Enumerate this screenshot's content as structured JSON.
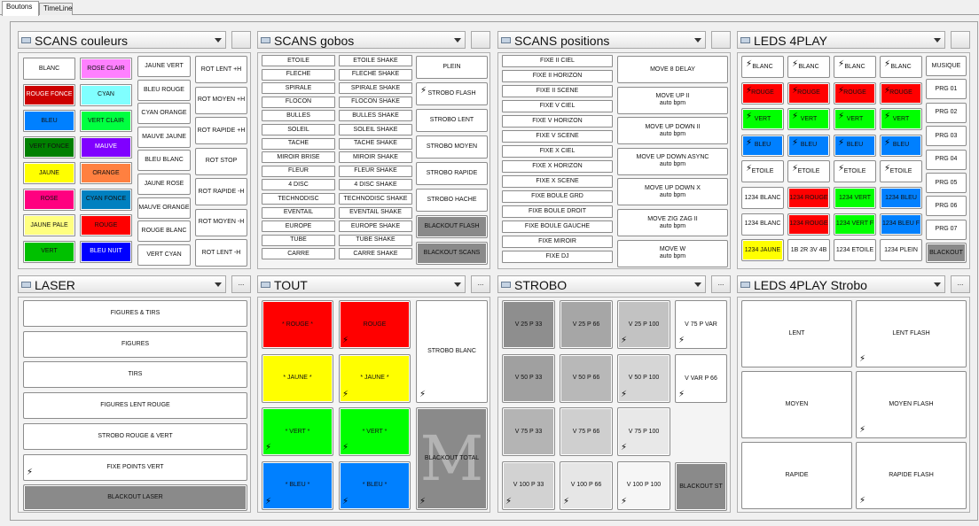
{
  "tabs": [
    "Boutons",
    "TimeLine"
  ],
  "icons": {
    "flash": "lightning-bolt-icon",
    "dropdown": "chevron-down-icon",
    "panel": "window-icon"
  },
  "panels": {
    "scans_couleurs": {
      "title": "SCANS couleurs"
    },
    "scans_gobos": {
      "title": "SCANS gobos"
    },
    "scans_positions": {
      "title": "SCANS positions"
    },
    "leds_4play": {
      "title": "LEDS 4PLAY"
    },
    "laser": {
      "title": "LASER",
      "more": "..."
    },
    "tout": {
      "title": "TOUT",
      "more": "..."
    },
    "strobo": {
      "title": "STROBO",
      "more": "..."
    },
    "leds_4play_strobo": {
      "title": "LEDS 4PLAY Strobo",
      "more": "..."
    }
  },
  "scans_couleurs": {
    "colors": [
      {
        "label": "BLANC",
        "color": "#ffffff"
      },
      {
        "label": "ROSE CLAIR",
        "color": "#ff80ff"
      },
      {
        "label": "ROUGE FONCE",
        "color": "#cc0000"
      },
      {
        "label": "CYAN",
        "color": "#80ffff"
      },
      {
        "label": "BLEU",
        "color": "#0080ff"
      },
      {
        "label": "VERT CLAIR",
        "color": "#00ff40"
      },
      {
        "label": "VERT FONCE",
        "color": "#008000"
      },
      {
        "label": "MAUVE",
        "color": "#8000ff"
      },
      {
        "label": "JAUNE",
        "color": "#ffff00"
      },
      {
        "label": "ORANGE",
        "color": "#ff8040"
      },
      {
        "label": "ROSE",
        "color": "#ff0080"
      },
      {
        "label": "CYAN FONCE",
        "color": "#0080c0"
      },
      {
        "label": "JAUNE PALE",
        "color": "#ffff80"
      },
      {
        "label": "ROUGE",
        "color": "#ff0000"
      },
      {
        "label": "VERT",
        "color": "#00c000"
      },
      {
        "label": "BLEU NUIT",
        "color": "#0000ff"
      }
    ],
    "mixed": [
      "JAUNE VERT",
      "BLEU ROUGE",
      "CYAN ORANGE",
      "MAUVE JAUNE",
      "BLEU BLANC",
      "JAUNE ROSE",
      "MAUVE ORANGE",
      "ROUGE BLANC",
      "VERT CYAN"
    ],
    "rotation": [
      "ROT LENT +H",
      "ROT MOYEN +H",
      "ROT RAPIDE +H",
      "ROT STOP",
      "ROT RAPIDE -H",
      "ROT MOYEN -H",
      "ROT LENT -H"
    ]
  },
  "scans_gobos": {
    "gobos": [
      "ETOILE",
      "FLECHE",
      "SPIRALE",
      "FLOCON",
      "BULLES",
      "SOLEIL",
      "TACHE",
      "MIROIR BRISE",
      "FLEUR",
      "4 DISC",
      "TECHNODISC",
      "EVENTAIL",
      "EUROPE",
      "TUBE",
      "CARRE"
    ],
    "shake": [
      "ETOILE SHAKE",
      "FLECHE SHAKE",
      "SPIRALE SHAKE",
      "FLOCON SHAKE",
      "BULLES SHAKE",
      "SOLEIL SHAKE",
      "TACHE SHAKE",
      "MIROIR SHAKE",
      "FLEUR SHAKE",
      "4 DISC SHAKE",
      "TECHNODISC SHAKE",
      "EVENTAIL SHAKE",
      "EUROPE SHAKE",
      "TUBE SHAKE",
      "CARRE SHAKE"
    ],
    "effects": [
      "PLEIN",
      "STROBO FLASH",
      "STROBO LENT",
      "STROBO MOYEN",
      "STROBO RAPIDE",
      "STROBO HACHE",
      "BLACKOUT FLASH",
      "BLACKOUT SCANS"
    ]
  },
  "scans_positions": {
    "fixes": [
      "FIXE II CIEL",
      "FIXE II HORIZON",
      "FIXE II SCENE",
      "FIXE V CIEL",
      "FIXE V HORIZON",
      "FIXE V SCENE",
      "FIXE X CIEL",
      "FIXE X HORIZON",
      "FIXE X SCENE",
      "FIXE BOULE GRD",
      "FIXE BOULE DROIT",
      "FIXE BOULE GAUCHE",
      "FIXE MIROIR",
      "FIXE DJ"
    ],
    "moves": [
      {
        "label": "MOVE 8 DELAY",
        "sub": ""
      },
      {
        "label": "MOVE UP II",
        "sub": "auto bpm"
      },
      {
        "label": "MOVE UP DOWN II",
        "sub": "auto bpm"
      },
      {
        "label": "MOVE UP DOWN ASYNC",
        "sub": "auto bpm"
      },
      {
        "label": "MOVE UP DOWN X",
        "sub": "auto bpm"
      },
      {
        "label": "MOVE ZIG ZAG II",
        "sub": "auto bpm"
      },
      {
        "label": "MOVE W",
        "sub": "auto bpm"
      }
    ]
  },
  "leds_4play": {
    "grid": [
      {
        "label": "BLANC",
        "color": "#ffffff"
      },
      {
        "label": "BLANC",
        "color": "#ffffff"
      },
      {
        "label": "BLANC",
        "color": "#ffffff"
      },
      {
        "label": "BLANC",
        "color": "#ffffff"
      },
      {
        "label": "ROUGE",
        "color": "#ff0000"
      },
      {
        "label": "ROUGE",
        "color": "#ff0000"
      },
      {
        "label": "ROUGE",
        "color": "#ff0000"
      },
      {
        "label": "ROUGE",
        "color": "#ff0000"
      },
      {
        "label": "VERT",
        "color": "#00ff00"
      },
      {
        "label": "VERT",
        "color": "#00ff00"
      },
      {
        "label": "VERT",
        "color": "#00ff00"
      },
      {
        "label": "VERT",
        "color": "#00ff00"
      },
      {
        "label": "BLEU",
        "color": "#0080ff"
      },
      {
        "label": "BLEU",
        "color": "#0080ff"
      },
      {
        "label": "BLEU",
        "color": "#0080ff"
      },
      {
        "label": "BLEU",
        "color": "#0080ff"
      },
      {
        "label": "ETOILE",
        "color": "#ffffff"
      },
      {
        "label": "ETOILE",
        "color": "#ffffff"
      },
      {
        "label": "ETOILE",
        "color": "#ffffff"
      },
      {
        "label": "ETOILE",
        "color": "#ffffff"
      },
      {
        "label": "1234 BLANC",
        "color": "#ffffff"
      },
      {
        "label": "1234 ROUGE",
        "color": "#ff0000"
      },
      {
        "label": "1234 VERT",
        "color": "#00ff00"
      },
      {
        "label": "1234 BLEU",
        "color": "#0080ff"
      },
      {
        "label": "1234 BLANC",
        "color": "#ffffff"
      },
      {
        "label": "1234 ROUGE",
        "color": "#ff0000"
      },
      {
        "label": "1234 VERT F",
        "color": "#00ff00"
      },
      {
        "label": "1234 BLEU F",
        "color": "#0080ff"
      },
      {
        "label": "1234 JAUNE",
        "color": "#ffff00"
      },
      {
        "label": "1B 2R 3V 4B",
        "color": "#ffffff"
      },
      {
        "label": "1234 ETOILE",
        "color": "#ffffff"
      },
      {
        "label": "1234 PLEIN",
        "color": "#ffffff"
      }
    ],
    "side": [
      "MUSIQUE",
      "PRG 01",
      "PRG 02",
      "PRG 03",
      "PRG 04",
      "PRG 05",
      "PRG 06",
      "PRG 07",
      "BLACKOUT"
    ]
  },
  "laser": [
    "FIGURES & TIRS",
    "FIGURES",
    "TIRS",
    "FIGURES LENT ROUGE",
    "STROBO ROUGE & VERT",
    "FIXE POINTS VERT",
    "BLACKOUT LASER"
  ],
  "tout": {
    "colors": [
      {
        "label": "* ROUGE *",
        "color": "#ff0000"
      },
      {
        "label": "ROUGE",
        "color": "#ff0000"
      },
      {
        "label": "* JAUNE *",
        "color": "#ffff00"
      },
      {
        "label": "* JAUNE *",
        "color": "#ffff00"
      },
      {
        "label": "* VERT *",
        "color": "#00ff00"
      },
      {
        "label": "* VERT *",
        "color": "#00ff00"
      },
      {
        "label": "* BLEU *",
        "color": "#0080ff"
      },
      {
        "label": "* BLEU *",
        "color": "#0080ff"
      }
    ],
    "strobo_blanc": "STROBO BLANC",
    "blackout_total": "BLACKOUT TOTAL",
    "logo": "M"
  },
  "strobo": {
    "grid": [
      {
        "label": "V 25 P 33",
        "color": "#8e8e8e"
      },
      {
        "label": "V 25 P 66",
        "color": "#a6a6a6"
      },
      {
        "label": "V 25 P 100",
        "color": "#c2c2c2"
      },
      {
        "label": "V 50 P 33",
        "color": "#a0a0a0"
      },
      {
        "label": "V 50 P 66",
        "color": "#b8b8b8"
      },
      {
        "label": "V 50 P 100",
        "color": "#d6d6d6"
      },
      {
        "label": "V 75 P 33",
        "color": "#b4b4b4"
      },
      {
        "label": "V 75 P 66",
        "color": "#cfcfcf"
      },
      {
        "label": "V 75 P 100",
        "color": "#e8e8e8"
      },
      {
        "label": "V 100 P 33",
        "color": "#d2d2d2"
      },
      {
        "label": "V 100 P 66",
        "color": "#e6e6e6"
      },
      {
        "label": "V 100 P 100",
        "color": "#f6f6f6"
      }
    ],
    "side": [
      "V 75 P VAR",
      "V VAR P 66",
      "",
      "BLACKOUT ST"
    ]
  },
  "leds_4play_strobo": [
    "LENT",
    "LENT FLASH",
    "MOYEN",
    "MOYEN FLASH",
    "RAPIDE",
    "RAPIDE FLASH"
  ]
}
